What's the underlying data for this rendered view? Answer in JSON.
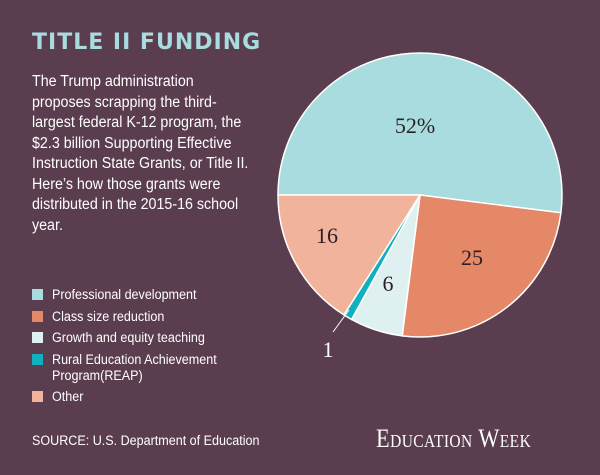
{
  "title": "TITLE II FUNDING",
  "description": "The Trump administration proposes scrapping the third-largest federal K-12 program, the $2.3 billion Supporting Effective Instruction State Grants, or Title II. Here’s how those grants were distributed in the 2015-16 school year.",
  "source": "SOURCE: U.S. Department of Education",
  "brand": "Education Week",
  "colors": {
    "background": "#5a3d4e",
    "title": "#a9dcde"
  },
  "chart_data": {
    "type": "pie",
    "slices": [
      {
        "name": "Professional development",
        "value": 52,
        "label": "52%",
        "color": "#a9dcde"
      },
      {
        "name": "Class size reduction",
        "value": 25,
        "label": "25",
        "color": "#e58867"
      },
      {
        "name": "Growth and equity teaching",
        "value": 6,
        "label": "6",
        "color": "#dff0f1"
      },
      {
        "name": "Rural Education Achievement Program(REAP)",
        "value": 1,
        "label": "1",
        "color": "#12b0bf"
      },
      {
        "name": "Other",
        "value": 16,
        "label": "16",
        "color": "#f1b39b"
      }
    ]
  }
}
